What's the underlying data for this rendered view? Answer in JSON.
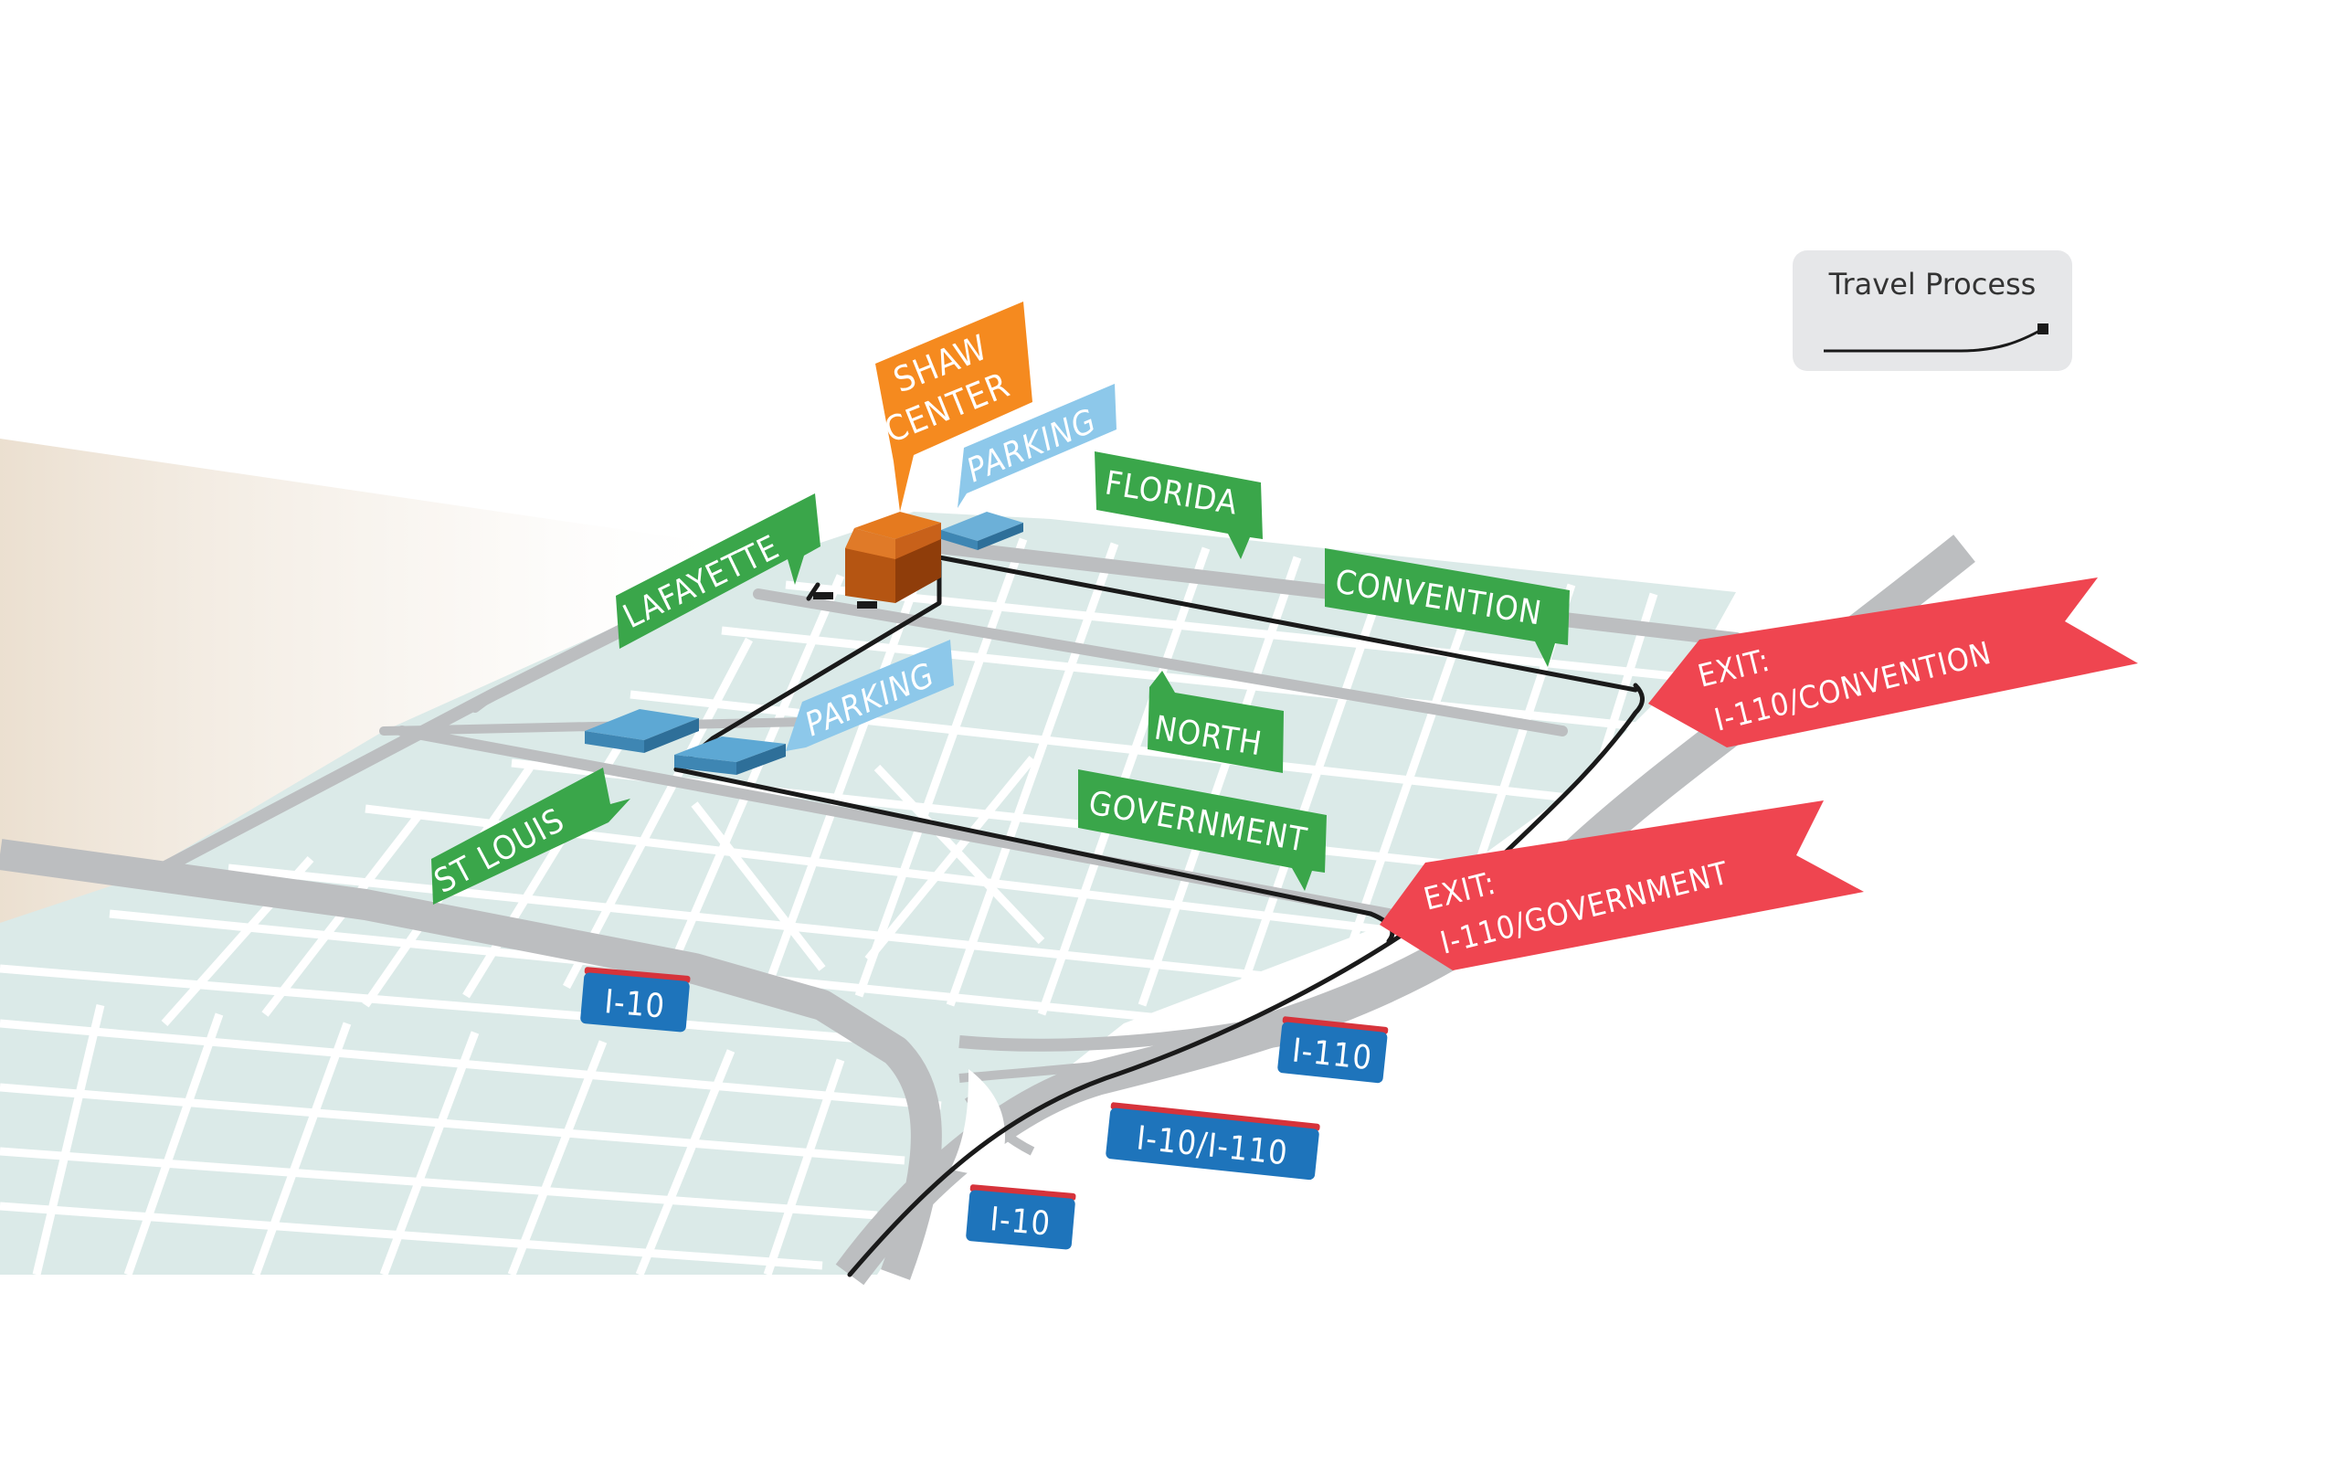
{
  "colors": {
    "background": "#ffffff",
    "block": "#dbeae8",
    "block_stroke": "#ffffff",
    "major_road": "#bcbec0",
    "minor_road": "#ffffff",
    "route": "#1a1a1a",
    "street_label": "#3aa64a",
    "destination": "#f58a1f",
    "parking_label": "#8dc8ea",
    "parking_lot": "#4a9cc8",
    "exit": "#ef4550",
    "highway_shield": "#1e74bb",
    "highway_shield_top": "#d6333b",
    "legend_bg": "#e6e7e9"
  },
  "destination": {
    "label_line1": "SHAW",
    "label_line2": "CENTER"
  },
  "parking": {
    "north_label": "PARKING",
    "south_label": "PARKING"
  },
  "streets": {
    "florida": "FLORIDA",
    "convention": "CONVENTION",
    "lafayette": "LAFAYETTE",
    "north": "NORTH",
    "government": "GOVERNMENT",
    "st_louis": "ST LOUIS"
  },
  "exits": {
    "convention": {
      "line1": "EXIT:",
      "line2": "I-110/CONVENTION"
    },
    "government": {
      "line1": "EXIT:",
      "line2": "I-110/GOVERNMENT"
    }
  },
  "highways": {
    "i10_west": "I-10",
    "i110": "I-110",
    "i10_i110": "I-10/I-110",
    "i10_south": "I-10"
  },
  "legend": {
    "title": "Travel Process",
    "icon": "route-line-icon"
  }
}
